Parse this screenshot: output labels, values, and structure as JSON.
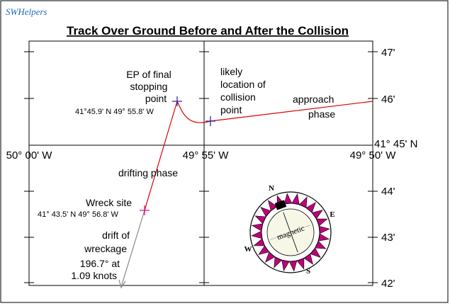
{
  "brand": "SWHelpers",
  "title": "Track Over Ground Before and After the Collision",
  "lon_labels": [
    "50° 00' W",
    "49° 55' W",
    "49° 50' W"
  ],
  "lat_labels_right": [
    "47'",
    "46'",
    "41° 45' N",
    "44'",
    "43'",
    "42'"
  ],
  "annotations": {
    "ep_line1": "EP of final",
    "ep_line2": "stopping",
    "ep_line3": "point",
    "ep_coords": "41°45.9' N  49° 55.8' W",
    "collision_line1": "likely",
    "collision_line2": "location of",
    "collision_line3": "collision",
    "collision_line4": "point",
    "approach_line1": "approach",
    "approach_line2": "phase",
    "drifting": "drifting  phase",
    "wreck_label": "Wreck site",
    "wreck_coords": "41° 43.5' N  49° 56.8' W",
    "drift_line1": "drift of",
    "drift_line2": "wreckage",
    "drift_line3": "196.7° at",
    "drift_line4": "1.09 knots"
  },
  "compass": {
    "north": "N",
    "east": "E",
    "south": "S",
    "west": "W",
    "label": "magnetic"
  },
  "colors": {
    "track": "#e00000",
    "drift": "#888888",
    "marker_blue": "#1a1aa0",
    "marker_magenta": "#e0007a",
    "compass_rose": "#c0007a",
    "brand": "#1e6bb8"
  }
}
